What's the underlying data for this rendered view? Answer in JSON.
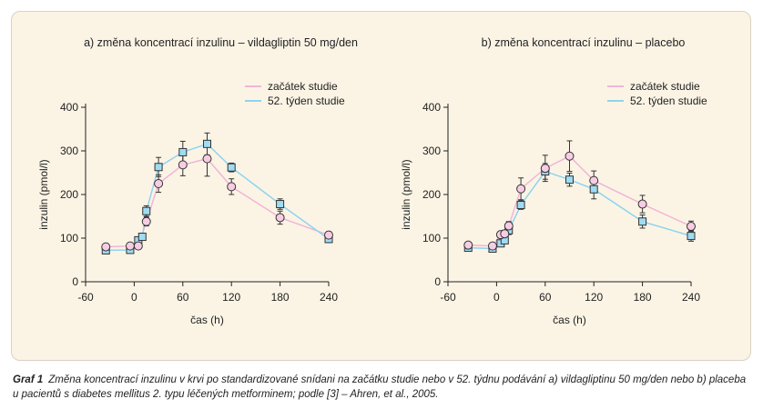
{
  "colors": {
    "background": "#fbf4e5",
    "start_line": "#f2b5d6",
    "start_marker": "#f7cde4",
    "week52_line": "#8fd3ef",
    "week52_marker": "#9fdcf3",
    "axis": "#222222",
    "error_bar": "#333333"
  },
  "chart_data": [
    {
      "type": "line",
      "title": "a) změna koncentrací inzulinu – vildagliptin 50 mg/den",
      "xlabel": "čas (h)",
      "ylabel": "inzulin (pmol/l)",
      "xlim": [
        -60,
        240
      ],
      "ylim": [
        0,
        400
      ],
      "xticks": [
        -60,
        0,
        60,
        120,
        180,
        240
      ],
      "yticks": [
        0,
        100,
        200,
        300,
        400
      ],
      "legend_position": "top-right",
      "series": [
        {
          "name": "začátek studie",
          "marker": "circle",
          "x": [
            -35,
            -5,
            5,
            15,
            30,
            60,
            90,
            120,
            180,
            240
          ],
          "y": [
            80,
            82,
            82,
            138,
            225,
            268,
            282,
            218,
            147,
            107
          ],
          "err": [
            0,
            5,
            5,
            10,
            20,
            25,
            40,
            18,
            15,
            8
          ]
        },
        {
          "name": "52. týden studie",
          "marker": "square",
          "x": [
            -35,
            -5,
            5,
            10,
            15,
            30,
            60,
            90,
            120,
            180,
            240
          ],
          "y": [
            72,
            73,
            95,
            103,
            162,
            263,
            297,
            316,
            262,
            178,
            98
          ],
          "err": [
            0,
            4,
            5,
            8,
            12,
            22,
            25,
            25,
            10,
            12,
            8
          ]
        }
      ]
    },
    {
      "type": "line",
      "title": "b) změna koncentrací inzulinu – placebo",
      "xlabel": "čas (h)",
      "ylabel": "inzulin (pmol/l)",
      "xlim": [
        -60,
        240
      ],
      "ylim": [
        0,
        400
      ],
      "xticks": [
        -60,
        0,
        60,
        120,
        180,
        240
      ],
      "yticks": [
        0,
        100,
        200,
        300,
        400
      ],
      "legend_position": "top-right",
      "series": [
        {
          "name": "začátek studie",
          "marker": "circle",
          "x": [
            -35,
            -5,
            5,
            10,
            15,
            30,
            60,
            90,
            120,
            180,
            240
          ],
          "y": [
            84,
            82,
            108,
            110,
            128,
            213,
            260,
            288,
            232,
            178,
            127
          ],
          "err": [
            0,
            5,
            5,
            8,
            10,
            25,
            30,
            35,
            22,
            20,
            12
          ]
        },
        {
          "name": "52. týden studie",
          "marker": "square",
          "x": [
            -35,
            -5,
            5,
            10,
            15,
            30,
            60,
            90,
            120,
            180,
            240
          ],
          "y": [
            78,
            76,
            88,
            95,
            118,
            176,
            253,
            234,
            212,
            138,
            105
          ],
          "err": [
            0,
            4,
            5,
            6,
            10,
            10,
            18,
            15,
            22,
            15,
            12
          ]
        }
      ]
    }
  ],
  "caption": {
    "label": "Graf 1",
    "text": "Změna koncentrací inzulinu v krvi po standardizované snídani na začátku studie nebo v 52. týdnu podávání a) vildagliptinu 50 mg/den nebo b) placeba u pacientů s diabetes mellitus 2. typu léčených metforminem; podle [3] – Ahren, et al., 2005."
  }
}
